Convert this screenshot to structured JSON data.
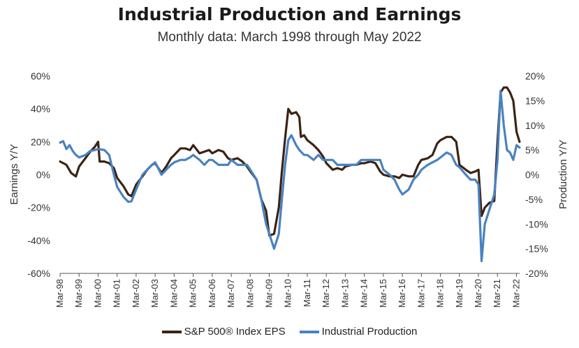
{
  "chart_data": {
    "type": "line",
    "title": "Industrial Production and Earnings",
    "subtitle": "Monthly data: March 1998 through May 2022",
    "ylabel_left": "Earnings Y/Y",
    "ylabel_right": "Production Y/Y",
    "ylim_left": [
      -60,
      60
    ],
    "ylim_right": [
      -20,
      20
    ],
    "yticks_left": [
      "60%",
      "40%",
      "20%",
      "0%",
      "-20%",
      "-40%",
      "-60%"
    ],
    "yticks_right": [
      "20%",
      "15%",
      "10%",
      "5%",
      "0%",
      "-5%",
      "-10%",
      "-15%",
      "-20%"
    ],
    "x_start": 1998.1667,
    "x_end": 2022.3333,
    "xticks": [
      "Mar-98",
      "Mar-99",
      "Mar-00",
      "Mar-01",
      "Mar-02",
      "Mar-03",
      "Mar-04",
      "Mar-05",
      "Mar-06",
      "Mar-07",
      "Mar-08",
      "Mar-09",
      "Mar-10",
      "Mar-11",
      "Mar-12",
      "Mar-13",
      "Mar-14",
      "Mar-15",
      "Mar-16",
      "Mar-17",
      "Mar-18",
      "Mar-19",
      "Mar-20",
      "Mar-21",
      "Mar-22"
    ],
    "grid": false,
    "legend_position": "bottom",
    "series": [
      {
        "name": "S&P 500® Index EPS",
        "axis": "left",
        "color": "#3b2314",
        "points": [
          [
            1998.17,
            8
          ],
          [
            1998.5,
            6
          ],
          [
            1998.75,
            1
          ],
          [
            1999.0,
            -1
          ],
          [
            1999.17,
            5
          ],
          [
            1999.5,
            10
          ],
          [
            1999.75,
            14
          ],
          [
            2000.0,
            17
          ],
          [
            2000.17,
            20
          ],
          [
            2000.25,
            8
          ],
          [
            2000.5,
            8
          ],
          [
            2000.75,
            7
          ],
          [
            2001.0,
            4
          ],
          [
            2001.17,
            -2
          ],
          [
            2001.5,
            -7
          ],
          [
            2001.75,
            -12
          ],
          [
            2001.92,
            -13
          ],
          [
            2002.17,
            -6
          ],
          [
            2002.5,
            -1
          ],
          [
            2002.75,
            3
          ],
          [
            2003.0,
            6
          ],
          [
            2003.17,
            7
          ],
          [
            2003.5,
            1
          ],
          [
            2003.75,
            5
          ],
          [
            2004.0,
            10
          ],
          [
            2004.17,
            12
          ],
          [
            2004.5,
            16
          ],
          [
            2004.75,
            16
          ],
          [
            2005.0,
            15
          ],
          [
            2005.17,
            18
          ],
          [
            2005.5,
            13
          ],
          [
            2005.75,
            14
          ],
          [
            2006.0,
            15
          ],
          [
            2006.17,
            13
          ],
          [
            2006.5,
            15
          ],
          [
            2006.75,
            14
          ],
          [
            2007.0,
            10
          ],
          [
            2007.17,
            9
          ],
          [
            2007.5,
            10
          ],
          [
            2007.75,
            8
          ],
          [
            2008.0,
            5
          ],
          [
            2008.17,
            2
          ],
          [
            2008.5,
            -3
          ],
          [
            2008.75,
            -15
          ],
          [
            2009.0,
            -22
          ],
          [
            2009.17,
            -37
          ],
          [
            2009.42,
            -36
          ],
          [
            2009.67,
            -20
          ],
          [
            2009.83,
            2
          ],
          [
            2010.0,
            22
          ],
          [
            2010.17,
            40
          ],
          [
            2010.33,
            37
          ],
          [
            2010.58,
            38
          ],
          [
            2010.75,
            35
          ],
          [
            2010.83,
            23
          ],
          [
            2011.0,
            24
          ],
          [
            2011.17,
            21
          ],
          [
            2011.5,
            18
          ],
          [
            2011.75,
            15
          ],
          [
            2012.0,
            11
          ],
          [
            2012.17,
            7
          ],
          [
            2012.5,
            3
          ],
          [
            2012.75,
            4
          ],
          [
            2013.0,
            3
          ],
          [
            2013.17,
            5
          ],
          [
            2013.5,
            6
          ],
          [
            2013.75,
            6
          ],
          [
            2014.0,
            7
          ],
          [
            2014.17,
            7
          ],
          [
            2014.5,
            8
          ],
          [
            2014.75,
            7
          ],
          [
            2015.0,
            2
          ],
          [
            2015.17,
            0
          ],
          [
            2015.5,
            -1
          ],
          [
            2015.75,
            -1
          ],
          [
            2016.0,
            -2
          ],
          [
            2016.17,
            0
          ],
          [
            2016.5,
            -1
          ],
          [
            2016.75,
            -1
          ],
          [
            2017.0,
            6
          ],
          [
            2017.17,
            9
          ],
          [
            2017.5,
            10
          ],
          [
            2017.75,
            12
          ],
          [
            2018.0,
            19
          ],
          [
            2018.17,
            21
          ],
          [
            2018.5,
            23
          ],
          [
            2018.75,
            23
          ],
          [
            2019.0,
            20
          ],
          [
            2019.17,
            6
          ],
          [
            2019.5,
            3
          ],
          [
            2019.75,
            1
          ],
          [
            2020.0,
            2
          ],
          [
            2020.17,
            3
          ],
          [
            2020.33,
            -25
          ],
          [
            2020.5,
            -20
          ],
          [
            2020.75,
            -17
          ],
          [
            2021.0,
            -16
          ],
          [
            2021.17,
            20
          ],
          [
            2021.33,
            50
          ],
          [
            2021.5,
            53
          ],
          [
            2021.67,
            53
          ],
          [
            2021.83,
            50
          ],
          [
            2022.0,
            45
          ],
          [
            2022.17,
            26
          ],
          [
            2022.33,
            20
          ]
        ]
      },
      {
        "name": "Industrial Production",
        "axis": "right",
        "color": "#4a82c0",
        "points": [
          [
            1998.17,
            6.5
          ],
          [
            1998.33,
            6.8
          ],
          [
            1998.5,
            5.2
          ],
          [
            1998.67,
            6
          ],
          [
            1998.83,
            4.8
          ],
          [
            1999.0,
            4
          ],
          [
            1999.17,
            3.5
          ],
          [
            1999.5,
            4
          ],
          [
            1999.75,
            4.8
          ],
          [
            2000.0,
            5
          ],
          [
            2000.17,
            5.2
          ],
          [
            2000.5,
            5
          ],
          [
            2000.75,
            4
          ],
          [
            2001.0,
            0
          ],
          [
            2001.17,
            -2.5
          ],
          [
            2001.5,
            -4.5
          ],
          [
            2001.75,
            -5.5
          ],
          [
            2001.92,
            -5.4
          ],
          [
            2002.17,
            -3
          ],
          [
            2002.5,
            0
          ],
          [
            2002.75,
            1
          ],
          [
            2003.0,
            2
          ],
          [
            2003.17,
            2.5
          ],
          [
            2003.5,
            0
          ],
          [
            2003.75,
            1
          ],
          [
            2004.0,
            2
          ],
          [
            2004.17,
            2.5
          ],
          [
            2004.5,
            3
          ],
          [
            2004.75,
            3
          ],
          [
            2005.0,
            3.5
          ],
          [
            2005.17,
            4
          ],
          [
            2005.5,
            3
          ],
          [
            2005.75,
            2
          ],
          [
            2006.0,
            3
          ],
          [
            2006.17,
            3
          ],
          [
            2006.5,
            2
          ],
          [
            2006.75,
            2
          ],
          [
            2007.0,
            2
          ],
          [
            2007.17,
            3
          ],
          [
            2007.5,
            2
          ],
          [
            2007.75,
            2
          ],
          [
            2008.0,
            2
          ],
          [
            2008.17,
            1
          ],
          [
            2008.5,
            -1
          ],
          [
            2008.75,
            -5
          ],
          [
            2009.0,
            -10
          ],
          [
            2009.17,
            -12
          ],
          [
            2009.42,
            -15
          ],
          [
            2009.67,
            -12
          ],
          [
            2009.83,
            -5
          ],
          [
            2010.0,
            2
          ],
          [
            2010.17,
            7
          ],
          [
            2010.33,
            8
          ],
          [
            2010.58,
            6
          ],
          [
            2010.75,
            5
          ],
          [
            2011.0,
            4
          ],
          [
            2011.17,
            4
          ],
          [
            2011.5,
            3
          ],
          [
            2011.75,
            4
          ],
          [
            2012.0,
            3
          ],
          [
            2012.17,
            3
          ],
          [
            2012.5,
            3
          ],
          [
            2012.75,
            2
          ],
          [
            2013.0,
            2
          ],
          [
            2013.17,
            2
          ],
          [
            2013.5,
            2
          ],
          [
            2013.75,
            2
          ],
          [
            2014.0,
            3
          ],
          [
            2014.17,
            3
          ],
          [
            2014.5,
            3
          ],
          [
            2014.75,
            3
          ],
          [
            2015.0,
            3
          ],
          [
            2015.17,
            1
          ],
          [
            2015.5,
            0
          ],
          [
            2015.75,
            -1
          ],
          [
            2016.0,
            -3
          ],
          [
            2016.17,
            -4
          ],
          [
            2016.5,
            -3
          ],
          [
            2016.75,
            -1
          ],
          [
            2017.0,
            0
          ],
          [
            2017.17,
            1
          ],
          [
            2017.5,
            2
          ],
          [
            2017.75,
            2.5
          ],
          [
            2018.0,
            3
          ],
          [
            2018.17,
            3.5
          ],
          [
            2018.5,
            4.5
          ],
          [
            2018.75,
            4
          ],
          [
            2019.0,
            2
          ],
          [
            2019.17,
            1.5
          ],
          [
            2019.5,
            0
          ],
          [
            2019.75,
            -1
          ],
          [
            2020.0,
            -1
          ],
          [
            2020.17,
            -2
          ],
          [
            2020.33,
            -17.5
          ],
          [
            2020.5,
            -10
          ],
          [
            2020.75,
            -7
          ],
          [
            2021.0,
            -4
          ],
          [
            2021.17,
            3
          ],
          [
            2021.33,
            17
          ],
          [
            2021.5,
            10
          ],
          [
            2021.67,
            5
          ],
          [
            2021.83,
            4.5
          ],
          [
            2022.0,
            3
          ],
          [
            2022.17,
            6
          ],
          [
            2022.33,
            5.5
          ]
        ]
      }
    ]
  }
}
